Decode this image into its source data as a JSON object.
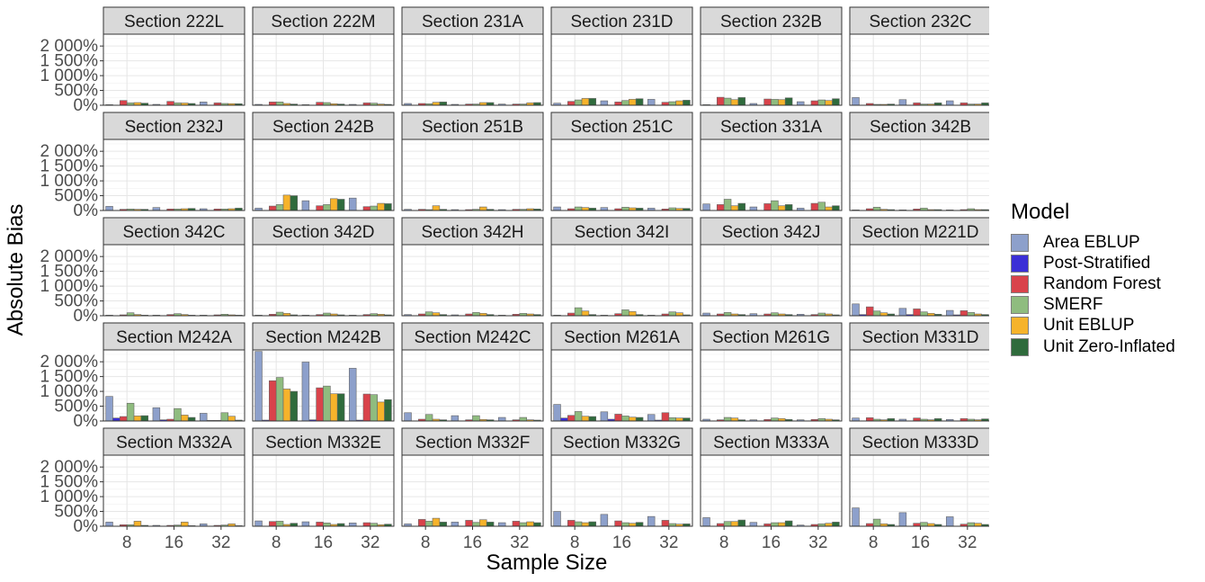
{
  "chart_data": {
    "type": "bar",
    "facet_layout": "6 columns x 5 rows, shared axes",
    "xlabel": "Sample Size",
    "ylabel": "Absolute Bias",
    "x_categories": [
      "8",
      "16",
      "32"
    ],
    "y_ticks": [
      0,
      500,
      1000,
      1500,
      2000
    ],
    "y_tick_labels": [
      "0%",
      "500%",
      "1 000%",
      "1 500%",
      "2 000%"
    ],
    "ylim": [
      0,
      2400
    ],
    "grid": true,
    "legend": {
      "title": "Model",
      "position": "right",
      "entries": [
        "Area EBLUP",
        "Post-Stratified",
        "Random Forest",
        "SMERF",
        "Unit EBLUP",
        "Unit Zero-Inflated"
      ]
    },
    "series_colors": [
      "#8da0cb",
      "#3b2fd6",
      "#d9434b",
      "#8fbc7f",
      "#f6b32b",
      "#2f6b3c"
    ],
    "panels": [
      {
        "title": "Section 222L",
        "values": [
          [
            20,
            5,
            160,
            80,
            90,
            70
          ],
          [
            30,
            5,
            130,
            80,
            75,
            60
          ],
          [
            110,
            5,
            80,
            60,
            55,
            50
          ]
        ]
      },
      {
        "title": "Section 222M",
        "values": [
          [
            30,
            5,
            110,
            110,
            60,
            40
          ],
          [
            20,
            5,
            100,
            90,
            50,
            40
          ],
          [
            30,
            5,
            80,
            70,
            40,
            30
          ]
        ]
      },
      {
        "title": "Section 231A",
        "values": [
          [
            60,
            5,
            60,
            50,
            100,
            110
          ],
          [
            30,
            5,
            40,
            40,
            90,
            90
          ],
          [
            40,
            5,
            40,
            40,
            80,
            90
          ]
        ]
      },
      {
        "title": "Section 231D",
        "values": [
          [
            70,
            5,
            130,
            180,
            230,
            230
          ],
          [
            150,
            5,
            110,
            160,
            200,
            220
          ],
          [
            200,
            5,
            100,
            120,
            150,
            170
          ]
        ]
      },
      {
        "title": "Section 232B",
        "values": [
          [
            20,
            5,
            270,
            240,
            190,
            260
          ],
          [
            60,
            5,
            210,
            200,
            190,
            250
          ],
          [
            120,
            5,
            150,
            180,
            160,
            220
          ]
        ]
      },
      {
        "title": "Section 232C",
        "values": [
          [
            260,
            5,
            60,
            30,
            30,
            40
          ],
          [
            190,
            5,
            80,
            40,
            40,
            80
          ],
          [
            150,
            5,
            80,
            40,
            40,
            80
          ]
        ]
      },
      {
        "title": "Section 232J",
        "values": [
          [
            140,
            5,
            40,
            50,
            40,
            40
          ],
          [
            100,
            5,
            50,
            50,
            60,
            70
          ],
          [
            60,
            5,
            50,
            50,
            60,
            80
          ]
        ]
      },
      {
        "title": "Section 242B",
        "values": [
          [
            80,
            5,
            150,
            200,
            520,
            500
          ],
          [
            330,
            5,
            160,
            200,
            400,
            380
          ],
          [
            420,
            5,
            130,
            150,
            240,
            230
          ]
        ]
      },
      {
        "title": "Section 251B",
        "values": [
          [
            40,
            5,
            40,
            30,
            160,
            40
          ],
          [
            30,
            5,
            30,
            40,
            120,
            40
          ],
          [
            30,
            5,
            40,
            40,
            60,
            50
          ]
        ]
      },
      {
        "title": "Section 251C",
        "values": [
          [
            120,
            5,
            60,
            120,
            100,
            80
          ],
          [
            100,
            5,
            60,
            110,
            90,
            80
          ],
          [
            80,
            5,
            50,
            90,
            70,
            70
          ]
        ]
      },
      {
        "title": "Section 331A",
        "values": [
          [
            220,
            5,
            200,
            380,
            160,
            240
          ],
          [
            120,
            5,
            230,
            330,
            160,
            200
          ],
          [
            80,
            5,
            240,
            280,
            120,
            160
          ]
        ]
      },
      {
        "title": "Section 342B",
        "values": [
          [
            20,
            5,
            60,
            110,
            40,
            30
          ],
          [
            20,
            5,
            50,
            80,
            30,
            30
          ],
          [
            20,
            5,
            30,
            60,
            30,
            30
          ]
        ]
      },
      {
        "title": "Section 342C",
        "values": [
          [
            20,
            5,
            30,
            100,
            40,
            20
          ],
          [
            20,
            5,
            40,
            70,
            40,
            20
          ],
          [
            20,
            5,
            30,
            50,
            30,
            20
          ]
        ]
      },
      {
        "title": "Section 342D",
        "values": [
          [
            20,
            5,
            50,
            120,
            80,
            30
          ],
          [
            20,
            5,
            40,
            90,
            60,
            30
          ],
          [
            20,
            5,
            40,
            70,
            50,
            30
          ]
        ]
      },
      {
        "title": "Section 342H",
        "values": [
          [
            40,
            5,
            60,
            130,
            100,
            40
          ],
          [
            30,
            5,
            60,
            110,
            80,
            40
          ],
          [
            20,
            5,
            50,
            80,
            60,
            40
          ]
        ]
      },
      {
        "title": "Section 342I",
        "values": [
          [
            20,
            5,
            90,
            270,
            160,
            40
          ],
          [
            20,
            5,
            70,
            200,
            140,
            40
          ],
          [
            20,
            5,
            60,
            130,
            100,
            30
          ]
        ]
      },
      {
        "title": "Section 342J",
        "values": [
          [
            90,
            5,
            60,
            110,
            60,
            40
          ],
          [
            70,
            5,
            60,
            100,
            60,
            40
          ],
          [
            50,
            5,
            40,
            90,
            60,
            30
          ]
        ]
      },
      {
        "title": "Section M221D",
        "values": [
          [
            400,
            40,
            300,
            160,
            100,
            60
          ],
          [
            250,
            40,
            230,
            130,
            80,
            50
          ],
          [
            180,
            30,
            170,
            110,
            60,
            40
          ]
        ]
      },
      {
        "title": "Section M242A",
        "values": [
          [
            830,
            100,
            150,
            600,
            170,
            180
          ],
          [
            450,
            40,
            60,
            420,
            200,
            120
          ],
          [
            260,
            20,
            20,
            280,
            160,
            30
          ]
        ]
      },
      {
        "title": "Section M242B",
        "values": [
          [
            2350,
            30,
            1360,
            1470,
            1080,
            1000
          ],
          [
            1990,
            40,
            1120,
            1180,
            920,
            920
          ],
          [
            1780,
            30,
            910,
            890,
            640,
            720
          ]
        ]
      },
      {
        "title": "Section M242C",
        "values": [
          [
            280,
            5,
            60,
            220,
            60,
            40
          ],
          [
            180,
            5,
            40,
            180,
            50,
            40
          ],
          [
            120,
            5,
            40,
            120,
            40,
            30
          ]
        ]
      },
      {
        "title": "Section M261A",
        "values": [
          [
            560,
            100,
            190,
            320,
            160,
            150
          ],
          [
            310,
            60,
            230,
            170,
            130,
            120
          ],
          [
            220,
            30,
            280,
            110,
            100,
            100
          ]
        ]
      },
      {
        "title": "Section M261G",
        "values": [
          [
            60,
            5,
            40,
            120,
            100,
            40
          ],
          [
            40,
            5,
            50,
            100,
            80,
            50
          ],
          [
            40,
            5,
            50,
            80,
            60,
            40
          ]
        ]
      },
      {
        "title": "Section M331D",
        "values": [
          [
            100,
            5,
            110,
            60,
            40,
            80
          ],
          [
            60,
            5,
            100,
            60,
            40,
            80
          ],
          [
            50,
            5,
            80,
            60,
            40,
            70
          ]
        ]
      },
      {
        "title": "Section M332A",
        "values": [
          [
            140,
            5,
            50,
            50,
            170,
            30
          ],
          [
            30,
            5,
            30,
            40,
            140,
            20
          ],
          [
            80,
            5,
            30,
            40,
            80,
            20
          ]
        ]
      },
      {
        "title": "Section M332E",
        "values": [
          [
            180,
            5,
            160,
            170,
            60,
            100
          ],
          [
            150,
            5,
            140,
            110,
            60,
            90
          ],
          [
            110,
            5,
            120,
            100,
            50,
            70
          ]
        ]
      },
      {
        "title": "Section M332F",
        "values": [
          [
            80,
            5,
            230,
            170,
            270,
            140
          ],
          [
            140,
            5,
            200,
            130,
            220,
            140
          ],
          [
            120,
            5,
            170,
            120,
            150,
            120
          ]
        ]
      },
      {
        "title": "Section M332G",
        "values": [
          [
            500,
            5,
            200,
            150,
            120,
            150
          ],
          [
            400,
            5,
            180,
            120,
            100,
            130
          ],
          [
            330,
            5,
            200,
            90,
            70,
            80
          ]
        ]
      },
      {
        "title": "Section M333A",
        "values": [
          [
            290,
            5,
            90,
            160,
            160,
            210
          ],
          [
            130,
            5,
            80,
            120,
            120,
            180
          ],
          [
            40,
            5,
            60,
            80,
            100,
            140
          ]
        ]
      },
      {
        "title": "Section M333D",
        "values": [
          [
            620,
            5,
            90,
            240,
            80,
            60
          ],
          [
            460,
            5,
            100,
            130,
            90,
            60
          ],
          [
            320,
            5,
            70,
            120,
            100,
            60
          ]
        ]
      }
    ]
  }
}
